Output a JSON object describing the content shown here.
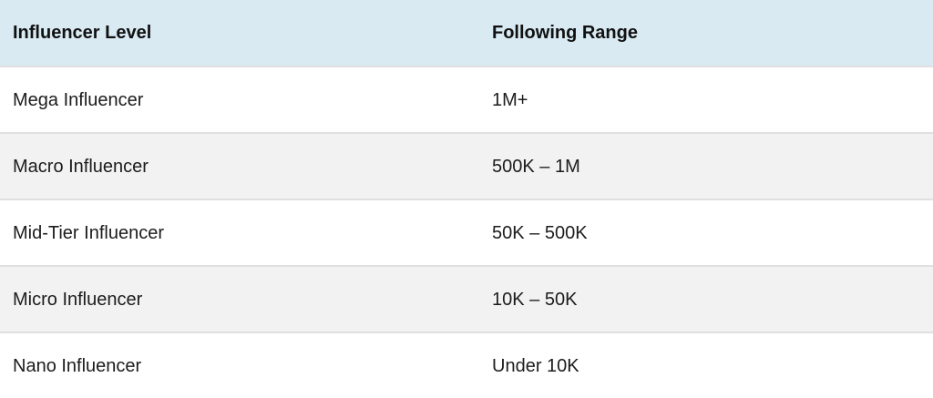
{
  "chart_data": {
    "type": "table",
    "columns": [
      "Influencer Level",
      "Following Range"
    ],
    "rows": [
      [
        "Mega Influencer",
        "1M+"
      ],
      [
        "Macro Influencer",
        "500K – 1M"
      ],
      [
        "Mid-Tier Influencer",
        "50K – 500K"
      ],
      [
        "Micro Influencer",
        "10K – 50K"
      ],
      [
        "Nano Influencer",
        "Under 10K"
      ]
    ]
  },
  "colors": {
    "header_bg": "#d9eaf3",
    "row_bg": "#ffffff",
    "row_alt_bg": "#f2f2f2",
    "row_border": "#e0e0e0",
    "header_text": "#111111",
    "body_text": "#1c1c1c"
  }
}
